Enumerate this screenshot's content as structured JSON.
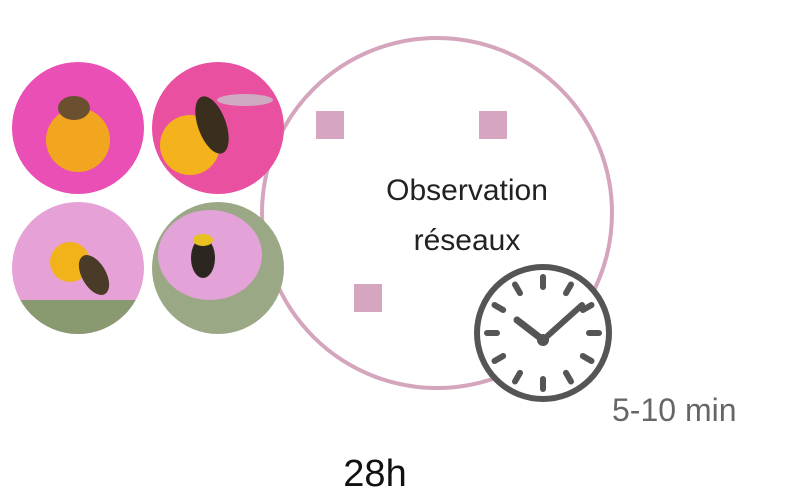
{
  "diagram": {
    "label_lines": [
      "Observation",
      "réseaux"
    ],
    "duration": "5-10 min",
    "total": "28h"
  }
}
